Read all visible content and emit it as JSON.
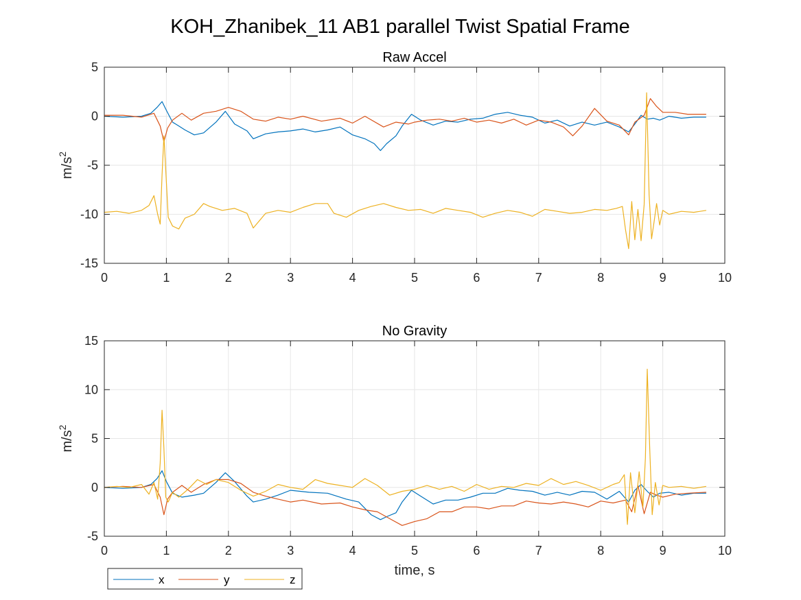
{
  "figure": {
    "title": "KOH_Zhanibek_11 AB1 parallel Twist Spatial Frame"
  },
  "legend": {
    "entries": [
      "x",
      "y",
      "z"
    ],
    "placement": "bottom-left",
    "orientation": "horizontal"
  },
  "colors": {
    "x": "#0072BD",
    "y": "#D95319",
    "z": "#EDB120",
    "grid": "#e6e6e6",
    "axis": "#262626"
  },
  "chart_data": [
    {
      "type": "line",
      "title": "Raw Accel",
      "xlabel": "",
      "ylabel": "m/s",
      "ylabel_superscript": "2",
      "xlim": [
        0,
        10
      ],
      "ylim": [
        -15,
        5
      ],
      "xticks": [
        "0",
        "1",
        "2",
        "3",
        "4",
        "5",
        "6",
        "7",
        "8",
        "9",
        "10"
      ],
      "yticks": [
        "-15",
        "-10",
        "-5",
        "0",
        "5"
      ],
      "grid": true,
      "series": [
        {
          "name": "x",
          "x": [
            0,
            0.3,
            0.6,
            0.75,
            0.85,
            0.93,
            1.0,
            1.1,
            1.2,
            1.3,
            1.45,
            1.6,
            1.8,
            1.95,
            2.1,
            2.3,
            2.4,
            2.6,
            2.8,
            3.0,
            3.2,
            3.4,
            3.6,
            3.8,
            4.0,
            4.2,
            4.35,
            4.45,
            4.55,
            4.7,
            4.8,
            4.95,
            5.1,
            5.3,
            5.5,
            5.7,
            5.9,
            6.1,
            6.3,
            6.5,
            6.7,
            6.9,
            7.1,
            7.3,
            7.5,
            7.7,
            7.9,
            8.1,
            8.3,
            8.45,
            8.55,
            8.65,
            8.75,
            8.85,
            8.95,
            9.1,
            9.3,
            9.5,
            9.7
          ],
          "y": [
            0,
            -0.1,
            0,
            0.3,
            0.9,
            1.5,
            0.6,
            -0.6,
            -1.0,
            -1.4,
            -1.9,
            -1.7,
            -0.6,
            0.5,
            -0.8,
            -1.5,
            -2.3,
            -1.8,
            -1.6,
            -1.5,
            -1.3,
            -1.6,
            -1.4,
            -1.1,
            -1.9,
            -2.3,
            -2.8,
            -3.5,
            -2.8,
            -2.0,
            -1.0,
            0.2,
            -0.4,
            -0.9,
            -0.5,
            -0.6,
            -0.3,
            -0.2,
            0.2,
            0.4,
            0.1,
            -0.1,
            -0.7,
            -0.4,
            -1.0,
            -0.6,
            -0.9,
            -0.6,
            -1.1,
            -1.6,
            -0.8,
            0.1,
            -0.3,
            -0.2,
            -0.4,
            0,
            -0.2,
            -0.1,
            -0.1
          ]
        },
        {
          "name": "y",
          "x": [
            0,
            0.3,
            0.6,
            0.8,
            0.9,
            0.96,
            1.02,
            1.1,
            1.25,
            1.4,
            1.6,
            1.8,
            2.0,
            2.2,
            2.4,
            2.6,
            2.8,
            3.0,
            3.2,
            3.5,
            3.8,
            4.0,
            4.2,
            4.5,
            4.7,
            4.9,
            5.0,
            5.2,
            5.4,
            5.6,
            5.8,
            6.0,
            6.2,
            6.4,
            6.6,
            6.8,
            7.0,
            7.2,
            7.4,
            7.55,
            7.7,
            7.9,
            8.1,
            8.3,
            8.45,
            8.55,
            8.7,
            8.8,
            8.9,
            9.0,
            9.2,
            9.4,
            9.7
          ],
          "y": [
            0.1,
            0.1,
            -0.1,
            0.3,
            -1.0,
            -2.6,
            -1.2,
            -0.4,
            0.3,
            -0.4,
            0.3,
            0.5,
            0.9,
            0.5,
            -0.3,
            -0.5,
            -0.1,
            -0.3,
            0,
            -0.5,
            -0.2,
            -0.7,
            0,
            -1.1,
            -0.6,
            -0.8,
            -0.6,
            -0.4,
            -0.3,
            -0.5,
            -0.2,
            -0.6,
            -0.4,
            -0.7,
            -0.3,
            -0.9,
            -0.4,
            -0.6,
            -1.1,
            -2.0,
            -1.0,
            0.8,
            -0.5,
            -0.9,
            -1.9,
            -0.6,
            0.1,
            1.8,
            1.0,
            0.4,
            0.4,
            0.2,
            0.2
          ]
        },
        {
          "name": "z",
          "x": [
            0,
            0.2,
            0.4,
            0.6,
            0.72,
            0.8,
            0.86,
            0.9,
            0.93,
            0.96,
            0.99,
            1.03,
            1.1,
            1.2,
            1.3,
            1.45,
            1.6,
            1.7,
            1.9,
            2.1,
            2.3,
            2.4,
            2.6,
            2.8,
            3.0,
            3.2,
            3.4,
            3.6,
            3.7,
            3.9,
            4.1,
            4.3,
            4.5,
            4.7,
            4.9,
            5.1,
            5.3,
            5.5,
            5.7,
            5.9,
            6.1,
            6.3,
            6.5,
            6.7,
            6.9,
            7.1,
            7.3,
            7.5,
            7.7,
            7.9,
            8.1,
            8.25,
            8.35,
            8.4,
            8.45,
            8.5,
            8.55,
            8.6,
            8.65,
            8.7,
            8.74,
            8.78,
            8.82,
            8.86,
            8.9,
            8.95,
            9.0,
            9.1,
            9.3,
            9.5,
            9.7
          ],
          "y": [
            -9.8,
            -9.7,
            -9.9,
            -9.6,
            -9.1,
            -8.1,
            -10.0,
            -11.0,
            -6.0,
            -2.0,
            -5.5,
            -10.3,
            -11.2,
            -11.5,
            -10.4,
            -10.0,
            -8.9,
            -9.2,
            -9.6,
            -9.4,
            -9.9,
            -11.4,
            -9.9,
            -9.6,
            -9.8,
            -9.3,
            -8.9,
            -8.9,
            -9.9,
            -10.3,
            -9.6,
            -9.2,
            -8.9,
            -9.3,
            -9.6,
            -9.5,
            -9.9,
            -9.4,
            -9.6,
            -9.8,
            -10.3,
            -9.9,
            -9.6,
            -9.8,
            -10.2,
            -9.5,
            -9.7,
            -9.9,
            -9.8,
            -9.5,
            -9.6,
            -9.4,
            -9.2,
            -11.6,
            -13.5,
            -8.7,
            -12.6,
            -9.5,
            -12.7,
            -9.0,
            2.4,
            -8.0,
            -12.5,
            -10.8,
            -8.9,
            -11.1,
            -9.6,
            -10.0,
            -9.7,
            -9.8,
            -9.6
          ]
        }
      ]
    },
    {
      "type": "line",
      "title": "No Gravity",
      "xlabel": "time, s",
      "ylabel": "m/s",
      "ylabel_superscript": "2",
      "xlim": [
        0,
        10
      ],
      "ylim": [
        -5,
        15
      ],
      "xticks": [
        "0",
        "1",
        "2",
        "3",
        "4",
        "5",
        "6",
        "7",
        "8",
        "9",
        "10"
      ],
      "yticks": [
        "-5",
        "0",
        "5",
        "10",
        "15"
      ],
      "grid": true,
      "series": [
        {
          "name": "x",
          "x": [
            0,
            0.3,
            0.6,
            0.75,
            0.85,
            0.93,
            1.0,
            1.1,
            1.25,
            1.45,
            1.6,
            1.8,
            1.95,
            2.1,
            2.3,
            2.4,
            2.6,
            2.8,
            3.0,
            3.3,
            3.6,
            3.9,
            4.1,
            4.3,
            4.45,
            4.55,
            4.7,
            4.8,
            4.95,
            5.1,
            5.3,
            5.5,
            5.7,
            5.9,
            6.1,
            6.3,
            6.5,
            6.7,
            6.9,
            7.1,
            7.3,
            7.5,
            7.7,
            7.9,
            8.1,
            8.3,
            8.45,
            8.55,
            8.65,
            8.75,
            8.85,
            8.95,
            9.1,
            9.3,
            9.5,
            9.7
          ],
          "y": [
            0,
            -0.1,
            0,
            0.3,
            0.9,
            1.7,
            0.6,
            -0.6,
            -1.0,
            -0.8,
            -0.6,
            0.5,
            1.5,
            0.6,
            -0.9,
            -1.5,
            -1.2,
            -0.8,
            -0.3,
            -0.5,
            -0.6,
            -1.2,
            -1.5,
            -2.8,
            -3.3,
            -3.0,
            -2.6,
            -1.5,
            -0.3,
            -0.9,
            -1.7,
            -1.3,
            -1.3,
            -1.0,
            -0.6,
            -0.6,
            -0.1,
            -0.3,
            -0.4,
            -0.8,
            -0.5,
            -0.8,
            -0.4,
            -0.5,
            -1.2,
            -0.4,
            -1.5,
            -0.3,
            0.3,
            -0.4,
            -1.0,
            -0.6,
            -0.5,
            -0.8,
            -0.6,
            -0.6
          ]
        },
        {
          "name": "y",
          "x": [
            0,
            0.3,
            0.6,
            0.8,
            0.9,
            0.96,
            1.02,
            1.1,
            1.25,
            1.4,
            1.6,
            1.8,
            2.0,
            2.2,
            2.4,
            2.6,
            2.8,
            3.0,
            3.2,
            3.5,
            3.8,
            4.0,
            4.2,
            4.4,
            4.6,
            4.8,
            5.0,
            5.2,
            5.4,
            5.6,
            5.8,
            6.0,
            6.2,
            6.4,
            6.6,
            6.8,
            7.0,
            7.2,
            7.4,
            7.6,
            7.8,
            8.0,
            8.2,
            8.4,
            8.5,
            8.6,
            8.7,
            8.8,
            8.9,
            9.0,
            9.2,
            9.4,
            9.7
          ],
          "y": [
            0,
            0.1,
            0,
            0.3,
            -1.0,
            -2.8,
            -1.2,
            -0.5,
            0.2,
            -0.5,
            0.3,
            0.8,
            0.8,
            0.4,
            -0.5,
            -0.9,
            -1.2,
            -1.5,
            -1.3,
            -1.7,
            -1.6,
            -2.0,
            -2.3,
            -2.5,
            -3.2,
            -3.9,
            -3.5,
            -3.2,
            -2.5,
            -2.5,
            -2.0,
            -2.0,
            -2.2,
            -1.9,
            -1.9,
            -1.4,
            -1.6,
            -1.7,
            -1.5,
            -1.7,
            -2.0,
            -1.4,
            -1.6,
            -1.3,
            -2.5,
            0.2,
            -2.7,
            -0.5,
            -0.8,
            -1.0,
            -0.7,
            -0.6,
            -0.5
          ]
        },
        {
          "name": "z",
          "x": [
            0,
            0.2,
            0.4,
            0.6,
            0.72,
            0.8,
            0.86,
            0.9,
            0.93,
            0.96,
            0.99,
            1.03,
            1.1,
            1.2,
            1.35,
            1.5,
            1.65,
            1.8,
            2.0,
            2.2,
            2.4,
            2.6,
            2.8,
            3.0,
            3.2,
            3.4,
            3.6,
            3.8,
            4.0,
            4.2,
            4.4,
            4.6,
            4.8,
            5.0,
            5.2,
            5.4,
            5.6,
            5.8,
            6.0,
            6.2,
            6.4,
            6.6,
            6.8,
            7.0,
            7.2,
            7.4,
            7.6,
            7.8,
            8.0,
            8.2,
            8.3,
            8.38,
            8.43,
            8.48,
            8.55,
            8.62,
            8.68,
            8.72,
            8.75,
            8.79,
            8.83,
            8.88,
            8.94,
            9.0,
            9.1,
            9.3,
            9.5,
            9.7
          ],
          "y": [
            0,
            0.1,
            0,
            0.3,
            -0.7,
            0.5,
            -1.2,
            2.5,
            7.9,
            4.0,
            -1.0,
            -1.5,
            -0.5,
            -1.0,
            -0.2,
            0.8,
            0.3,
            0.8,
            0.5,
            -0.3,
            -0.9,
            -0.4,
            0.3,
            0,
            -0.2,
            0.8,
            0.4,
            0.2,
            0,
            0.9,
            0.2,
            -0.8,
            -0.4,
            -0.2,
            0.2,
            -0.2,
            0.1,
            -0.4,
            0.3,
            -0.2,
            0.1,
            0,
            0.4,
            0.2,
            0.9,
            0.3,
            0.6,
            0.2,
            -0.3,
            0.3,
            0.5,
            1.3,
            -3.8,
            1.5,
            -2.6,
            1.6,
            -2.0,
            3.0,
            12.1,
            4.0,
            -2.8,
            0.5,
            -1.8,
            0.2,
            0,
            0.1,
            -0.1,
            0.1
          ]
        }
      ]
    }
  ]
}
